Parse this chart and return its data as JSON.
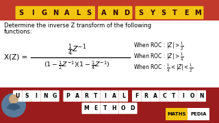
{
  "title_bg": "#c0392b",
  "title_letter_bg": "#f1c40f",
  "title_letter_fg": "#2c0000",
  "main_bg": "#ffffff",
  "bottom_bg": "#9b1c1c",
  "bottom_letter_bg": "#ffffff",
  "bottom_letter_fg": "#000000",
  "title_row": [
    "S",
    "I",
    "G",
    "N",
    "A",
    "L",
    "S",
    " ",
    "A",
    "N",
    "D",
    " ",
    "S",
    "Y",
    "S",
    "T",
    "E",
    "M"
  ],
  "bottom_row1": [
    "U",
    "S",
    "I",
    "N",
    "G",
    " ",
    "P",
    "A",
    "R",
    "T",
    "I",
    "A",
    "L",
    " ",
    "F",
    "R",
    "A",
    "C",
    "T",
    "I",
    "O",
    "N"
  ],
  "bottom_row2": [
    "M",
    "E",
    "T",
    "H",
    "O",
    "D"
  ],
  "text_line1": "Determine the inverse Z transform of the following",
  "text_line2": "functions:",
  "xz_label": "X(Z) =",
  "roc1": "When ROC : $|Z|>\\frac{1}{2}$",
  "roc2": "When ROC : $|Z|>\\frac{1}{4}$",
  "roc3": "When ROC : $\\frac{1}{4}<|Z|<\\frac{1}{2}$",
  "maths_bg": "#f1c40f",
  "pedia_bg": "#ffffff"
}
